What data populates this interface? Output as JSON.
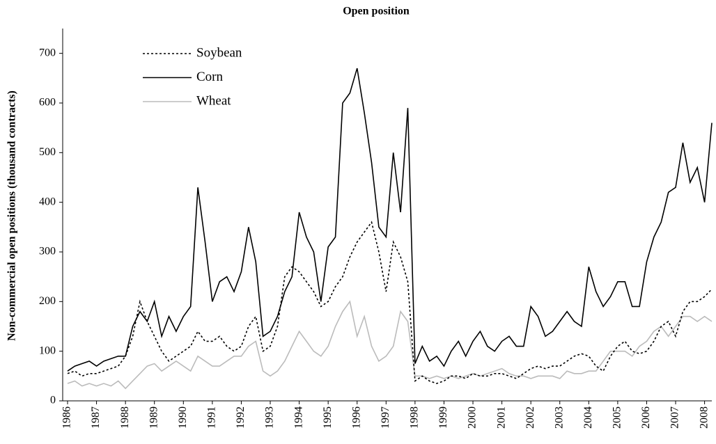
{
  "chart_data": {
    "type": "line",
    "title": "Open position",
    "y_label": "Non-commercial open positions (thousand contracts)",
    "x": [
      1986,
      1986.25,
      1986.5,
      1986.75,
      1987,
      1987.25,
      1987.5,
      1987.75,
      1988,
      1988.25,
      1988.5,
      1988.75,
      1989,
      1989.25,
      1989.5,
      1989.75,
      1990,
      1990.25,
      1990.5,
      1990.75,
      1991,
      1991.25,
      1991.5,
      1991.75,
      1992,
      1992.25,
      1992.5,
      1992.75,
      1993,
      1993.25,
      1993.5,
      1993.75,
      1994,
      1994.25,
      1994.5,
      1994.75,
      1995,
      1995.25,
      1995.5,
      1995.75,
      1996,
      1996.25,
      1996.5,
      1996.75,
      1997,
      1997.25,
      1997.5,
      1997.75,
      1998,
      1998.25,
      1998.5,
      1998.75,
      1999,
      1999.25,
      1999.5,
      1999.75,
      2000,
      2000.25,
      2000.5,
      2000.75,
      2001,
      2001.25,
      2001.5,
      2001.75,
      2002,
      2002.25,
      2002.5,
      2002.75,
      2003,
      2003.25,
      2003.5,
      2003.75,
      2004,
      2004.25,
      2004.5,
      2004.75,
      2005,
      2005.25,
      2005.5,
      2005.75,
      2006,
      2006.25,
      2006.5,
      2006.75,
      2007,
      2007.25,
      2007.5,
      2007.75,
      2008,
      2008.25
    ],
    "series": [
      {
        "name": "Soybean",
        "color": "#000000",
        "line_style": "dotted",
        "values": [
          55,
          60,
          50,
          55,
          55,
          60,
          65,
          70,
          90,
          130,
          200,
          160,
          130,
          100,
          80,
          90,
          100,
          110,
          140,
          120,
          120,
          130,
          110,
          100,
          110,
          150,
          170,
          100,
          110,
          150,
          250,
          270,
          260,
          240,
          220,
          190,
          200,
          230,
          250,
          290,
          320,
          340,
          360,
          300,
          220,
          320,
          290,
          240,
          40,
          50,
          40,
          35,
          40,
          50,
          50,
          45,
          55,
          50,
          50,
          55,
          55,
          50,
          45,
          55,
          65,
          70,
          65,
          70,
          70,
          80,
          90,
          95,
          90,
          70,
          60,
          90,
          110,
          120,
          100,
          95,
          100,
          120,
          150,
          160,
          130,
          180,
          200,
          200,
          210,
          225
        ]
      },
      {
        "name": "Corn",
        "color": "#000000",
        "line_style": "solid",
        "values": [
          60,
          70,
          75,
          80,
          70,
          80,
          85,
          90,
          90,
          150,
          180,
          160,
          200,
          130,
          170,
          140,
          170,
          190,
          430,
          320,
          200,
          240,
          250,
          220,
          260,
          350,
          280,
          130,
          140,
          170,
          220,
          250,
          380,
          330,
          300,
          200,
          310,
          330,
          600,
          620,
          670,
          580,
          480,
          350,
          330,
          500,
          380,
          590,
          75,
          110,
          80,
          90,
          70,
          100,
          120,
          90,
          120,
          140,
          110,
          100,
          120,
          130,
          110,
          110,
          190,
          170,
          130,
          140,
          160,
          180,
          160,
          150,
          270,
          220,
          190,
          210,
          240,
          240,
          190,
          190,
          280,
          330,
          360,
          420,
          430,
          520,
          440,
          470,
          400,
          560
        ]
      },
      {
        "name": "Wheat",
        "color": "#bbbbbb",
        "line_style": "solid",
        "values": [
          35,
          40,
          30,
          35,
          30,
          35,
          30,
          40,
          25,
          40,
          55,
          70,
          75,
          60,
          70,
          80,
          70,
          60,
          90,
          80,
          70,
          70,
          80,
          90,
          90,
          110,
          120,
          60,
          50,
          60,
          80,
          110,
          140,
          120,
          100,
          90,
          110,
          150,
          180,
          200,
          130,
          170,
          110,
          80,
          90,
          110,
          180,
          160,
          50,
          50,
          45,
          50,
          45,
          50,
          45,
          50,
          55,
          50,
          55,
          60,
          65,
          55,
          50,
          50,
          45,
          50,
          50,
          50,
          45,
          60,
          55,
          55,
          60,
          60,
          80,
          100,
          100,
          100,
          90,
          110,
          120,
          140,
          150,
          130,
          150,
          170,
          170,
          160,
          170,
          160
        ]
      }
    ],
    "xlim": [
      1986,
      2008.25
    ],
    "ylim": [
      0,
      750
    ],
    "xticks": [
      1986,
      1987,
      1988,
      1989,
      1990,
      1991,
      1992,
      1993,
      1994,
      1995,
      1996,
      1997,
      1998,
      1999,
      2000,
      2001,
      2002,
      2003,
      2004,
      2005,
      2006,
      2007,
      2008
    ],
    "yticks": [
      0,
      100,
      200,
      300,
      400,
      500,
      600,
      700
    ],
    "legend": "upper left",
    "grid": false
  }
}
